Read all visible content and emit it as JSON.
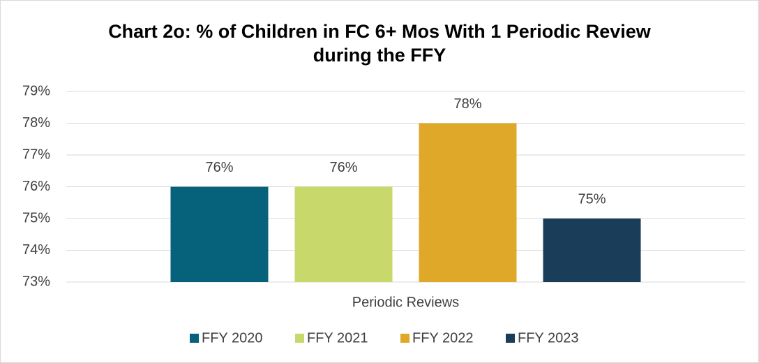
{
  "chart_data": {
    "type": "bar",
    "title": "Chart 2o: % of Children in FC 6+ Mos With 1 Periodic Review during the FFY",
    "categories": [
      "Periodic Reviews"
    ],
    "series": [
      {
        "name": "FFY 2020",
        "color": "#05627a",
        "values": [
          76
        ],
        "value_labels": [
          "76%"
        ]
      },
      {
        "name": "FFY 2021",
        "color": "#c8d86a",
        "values": [
          76
        ],
        "value_labels": [
          "76%"
        ]
      },
      {
        "name": "FFY 2022",
        "color": "#e0a828",
        "values": [
          78
        ],
        "value_labels": [
          "78%"
        ]
      },
      {
        "name": "FFY 2023",
        "color": "#1a3d5a",
        "values": [
          75
        ],
        "value_labels": [
          "75%"
        ]
      }
    ],
    "ylim": [
      73,
      79
    ],
    "yticks": [
      {
        "value": 73,
        "label": "73%"
      },
      {
        "value": 74,
        "label": "74%"
      },
      {
        "value": 75,
        "label": "75%"
      },
      {
        "value": 76,
        "label": "76%"
      },
      {
        "value": 77,
        "label": "77%"
      },
      {
        "value": 78,
        "label": "78%"
      },
      {
        "value": 79,
        "label": "79%"
      }
    ],
    "grid": true,
    "legend": "bottom"
  }
}
